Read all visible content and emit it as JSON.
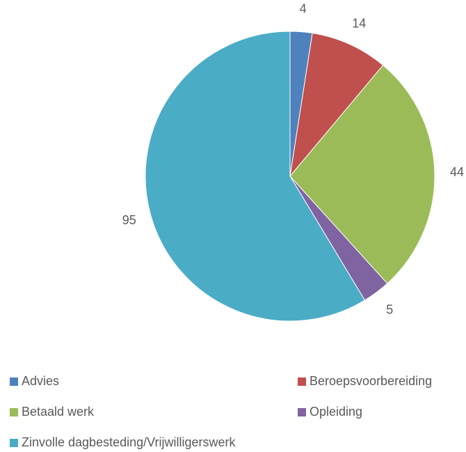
{
  "chart_data": {
    "type": "pie",
    "categories": [
      "Advies",
      "Beroepsvoorbereiding",
      "Betaald werk",
      "Opleiding",
      "Zinvolle dagbesteding/Vrijwilligerswerk"
    ],
    "values": [
      4,
      14,
      44,
      5,
      95
    ],
    "colors": [
      "#4f81bd",
      "#c0504d",
      "#9bbb59",
      "#8064a2",
      "#4bacc6"
    ],
    "legend": "bottom"
  }
}
